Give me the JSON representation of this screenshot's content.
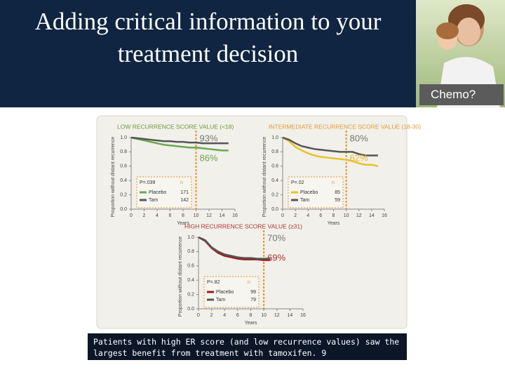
{
  "header": {
    "title": "Adding critical information to your treatment decision"
  },
  "photo_label": "Chemo?",
  "caption": "Patients with high ER score (and low recurrence values) saw the largest benefit from treatment with tamoxifen. 9",
  "chart_data": [
    {
      "type": "line",
      "title": "LOW RECURRENCE SCORE VALUE (<18)",
      "title_color": "#6c9a3a",
      "x_label": "Years",
      "y_label": "Proportion without distant recurrence",
      "x": [
        0,
        1,
        2,
        3,
        4,
        5,
        6,
        7,
        8,
        9,
        10,
        11,
        12,
        13,
        14,
        15
      ],
      "series": [
        {
          "name": "Placebo",
          "color": "#6aa84f",
          "n": 171,
          "values": [
            1.0,
            0.98,
            0.96,
            0.94,
            0.92,
            0.9,
            0.89,
            0.88,
            0.87,
            0.86,
            0.86,
            0.85,
            0.84,
            0.83,
            0.82,
            0.82
          ]
        },
        {
          "name": "Tam",
          "color": "#555555",
          "n": 142,
          "values": [
            1.0,
            0.99,
            0.98,
            0.97,
            0.96,
            0.95,
            0.95,
            0.94,
            0.94,
            0.93,
            0.93,
            0.92,
            0.92,
            0.92,
            0.92,
            0.92
          ]
        }
      ],
      "annotations": [
        {
          "label": "93%",
          "color": "#777777"
        },
        {
          "label": "86%",
          "color": "#6aa84f"
        }
      ],
      "p_value": "P=.039",
      "n_header": "n",
      "xlim": [
        0,
        16
      ],
      "xticks": [
        0,
        2,
        4,
        6,
        8,
        10,
        12,
        14,
        16
      ],
      "ylim": [
        0,
        1
      ],
      "yticks": [
        {
          "value": 0,
          "label": "0.0"
        },
        0.2,
        0.4,
        0.6,
        0.8,
        {
          "value": 1,
          "label": "1.0"
        }
      ]
    },
    {
      "type": "line",
      "title": "INTERMEDIATE RECURRENCE SCORE VALUE (18-30)",
      "title_color": "#e39a3a",
      "x_label": "Years",
      "y_label": "Proportion without distant recurrence",
      "x": [
        0,
        1,
        2,
        3,
        4,
        5,
        6,
        7,
        8,
        9,
        10,
        11,
        12,
        13,
        14,
        15
      ],
      "series": [
        {
          "name": "Placebo",
          "color": "#e8c22a",
          "n": 85,
          "values": [
            1.0,
            0.95,
            0.87,
            0.82,
            0.78,
            0.75,
            0.73,
            0.72,
            0.71,
            0.7,
            0.69,
            0.67,
            0.64,
            0.62,
            0.62,
            0.6
          ]
        },
        {
          "name": "Tam",
          "color": "#555555",
          "n": 59,
          "values": [
            1.0,
            0.97,
            0.92,
            0.88,
            0.86,
            0.84,
            0.83,
            0.82,
            0.81,
            0.8,
            0.8,
            0.8,
            0.77,
            0.75,
            0.75,
            0.75
          ]
        }
      ],
      "annotations": [
        {
          "label": "80%",
          "color": "#777777"
        },
        {
          "label": "62%",
          "color": "#e8b42a"
        }
      ],
      "p_value": "P=.02",
      "n_header": "n",
      "xlim": [
        0,
        16
      ],
      "xticks": [
        0,
        2,
        4,
        6,
        8,
        10,
        12,
        14,
        16
      ],
      "ylim": [
        0,
        1
      ],
      "yticks": [
        {
          "value": 0,
          "label": "0.0"
        },
        0.2,
        0.4,
        0.6,
        0.8,
        {
          "value": 1,
          "label": "1.0"
        }
      ]
    },
    {
      "type": "line",
      "title": "HIGH RECURRENCE SCORE VALUE (≥31)",
      "title_color": "#b0302a",
      "x_label": "Years",
      "y_label": "Proportion without distant recurrence",
      "x": [
        0,
        1,
        2,
        3,
        4,
        5,
        6,
        7,
        8,
        9,
        10,
        11
      ],
      "series": [
        {
          "name": "Placebo",
          "color": "#9b1c1c",
          "n": 99,
          "values": [
            1.0,
            0.95,
            0.85,
            0.78,
            0.74,
            0.72,
            0.7,
            0.69,
            0.69,
            0.69,
            0.68,
            0.68
          ]
        },
        {
          "name": "Tam",
          "color": "#555555",
          "n": 79,
          "values": [
            1.0,
            0.96,
            0.86,
            0.8,
            0.76,
            0.74,
            0.72,
            0.71,
            0.71,
            0.7,
            0.7,
            0.7
          ]
        }
      ],
      "annotations": [
        {
          "label": "70%",
          "color": "#777777"
        },
        {
          "label": "69%",
          "color": "#b0302a"
        }
      ],
      "p_value": "P=.82",
      "n_header": "n",
      "xlim": [
        0,
        16
      ],
      "xticks": [
        0,
        2,
        4,
        6,
        8,
        10,
        12,
        14,
        16
      ],
      "ylim": [
        0,
        1
      ],
      "yticks": [
        {
          "value": 0,
          "label": "0.0"
        },
        0.2,
        0.4,
        0.6,
        0.8,
        {
          "value": 1,
          "label": "1.0"
        }
      ]
    }
  ]
}
